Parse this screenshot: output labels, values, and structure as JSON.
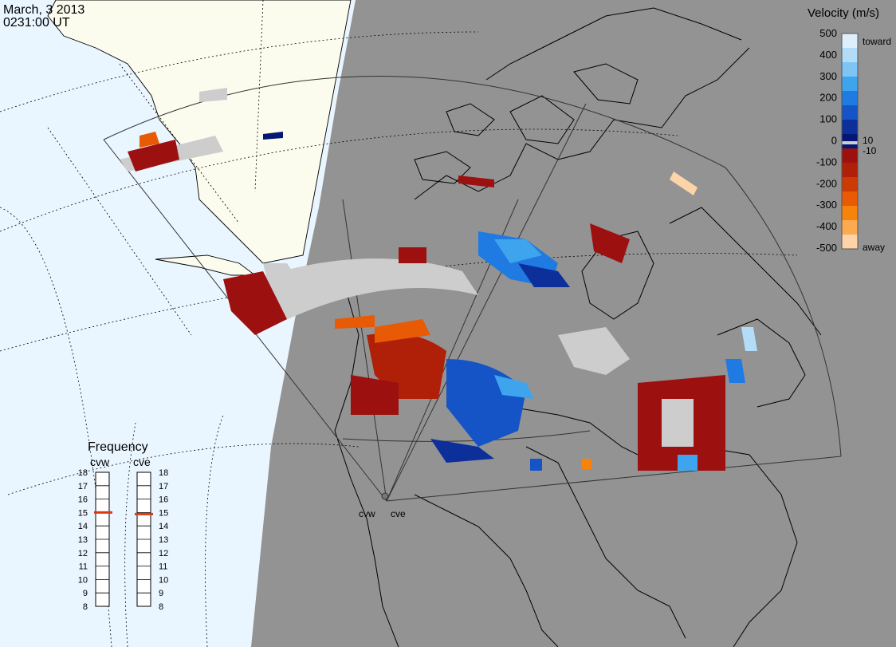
{
  "timestamp": {
    "date": "March, 3 2013",
    "time": "0231:00 UT"
  },
  "stations": [
    "cvw",
    "cve"
  ],
  "colorbar": {
    "title": "Velocity (m/s)",
    "labels": [
      "500",
      "400",
      "300",
      "200",
      "100",
      "0",
      "-100",
      "-200",
      "-300",
      "-400",
      "-500"
    ],
    "threshold_labels": [
      "10",
      "-10"
    ],
    "toward_label": "toward",
    "away_label": "away",
    "colors": [
      "#deeffb",
      "#b3dcf8",
      "#7ec4f4",
      "#3fa4ee",
      "#1f7be2",
      "#1554c6",
      "#0c2f9a",
      "#041775",
      "#9c1010",
      "#b02008",
      "#cc3a06",
      "#e85a04",
      "#f7830a",
      "#fbaa52",
      "#fdd3a8"
    ]
  },
  "frequency_panel": {
    "title": "Frequency",
    "left_station": "cvw",
    "right_station": "cve",
    "ticks": [
      "18",
      "17",
      "16",
      "15",
      "14",
      "13",
      "12",
      "11",
      "10",
      "9",
      "8"
    ],
    "cvw_freq_mhz": 15,
    "cve_freq_mhz": 15,
    "marker_color": "#d93a12"
  },
  "map_colors": {
    "ocean": "#eaf6ff",
    "land": "#fbfbee",
    "night": "#939393",
    "ground_scatter": "#cdcdcd"
  }
}
